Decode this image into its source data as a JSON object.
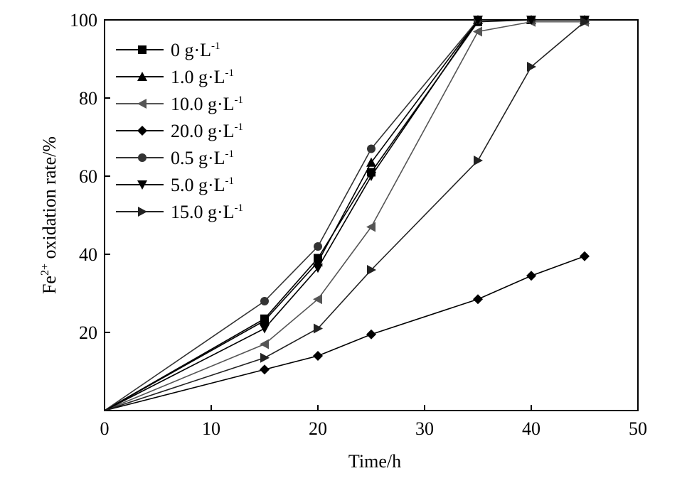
{
  "chart_data": {
    "type": "line",
    "xlabel": "Time/h",
    "ylabel": "Fe",
    "ylabel_sup": "2+",
    "ylabel_rest": " oxidation rate/%",
    "xlim": [
      0,
      50
    ],
    "ylim": [
      0,
      100
    ],
    "xticks": [
      0,
      10,
      20,
      30,
      40,
      50
    ],
    "yticks": [
      0,
      20,
      40,
      60,
      80,
      100
    ],
    "grid": false,
    "legend_position": "top-left",
    "unit_label": " g·L",
    "unit_sup": "-1",
    "series": [
      {
        "name": "0",
        "marker": "square",
        "color": "#000000",
        "x": [
          0,
          15,
          20,
          25,
          35,
          40,
          45
        ],
        "y": [
          0,
          23.5,
          39,
          61,
          99.5,
          100,
          100
        ]
      },
      {
        "name": "1.0",
        "marker": "triangle-up",
        "color": "#000000",
        "x": [
          0,
          15,
          20,
          25,
          35,
          40,
          45
        ],
        "y": [
          0,
          23,
          38,
          63.5,
          100,
          100,
          100
        ]
      },
      {
        "name": "10.0",
        "marker": "triangle-left",
        "color": "#555555",
        "x": [
          0,
          15,
          20,
          25,
          35,
          40,
          45
        ],
        "y": [
          0,
          17,
          28.5,
          47,
          97,
          99.5,
          99.5
        ]
      },
      {
        "name": "20.0",
        "marker": "diamond",
        "color": "#000000",
        "x": [
          0,
          15,
          20,
          25,
          35,
          40,
          45
        ],
        "y": [
          0,
          10.5,
          14,
          19.5,
          28.5,
          34.5,
          39.5
        ]
      },
      {
        "name": "0.5",
        "marker": "circle",
        "color": "#333333",
        "x": [
          0,
          15,
          20,
          25,
          35,
          40,
          45
        ],
        "y": [
          0,
          28,
          42,
          67,
          100,
          100,
          100
        ]
      },
      {
        "name": "5.0",
        "marker": "triangle-down",
        "color": "#000000",
        "x": [
          0,
          15,
          20,
          25,
          35,
          40,
          45
        ],
        "y": [
          0,
          21,
          36.5,
          60,
          100,
          100,
          100
        ]
      },
      {
        "name": "15.0",
        "marker": "triangle-right",
        "color": "#222222",
        "x": [
          0,
          15,
          20,
          25,
          35,
          40,
          45
        ],
        "y": [
          0,
          13.5,
          21,
          36,
          64,
          88,
          99.5
        ]
      }
    ]
  }
}
